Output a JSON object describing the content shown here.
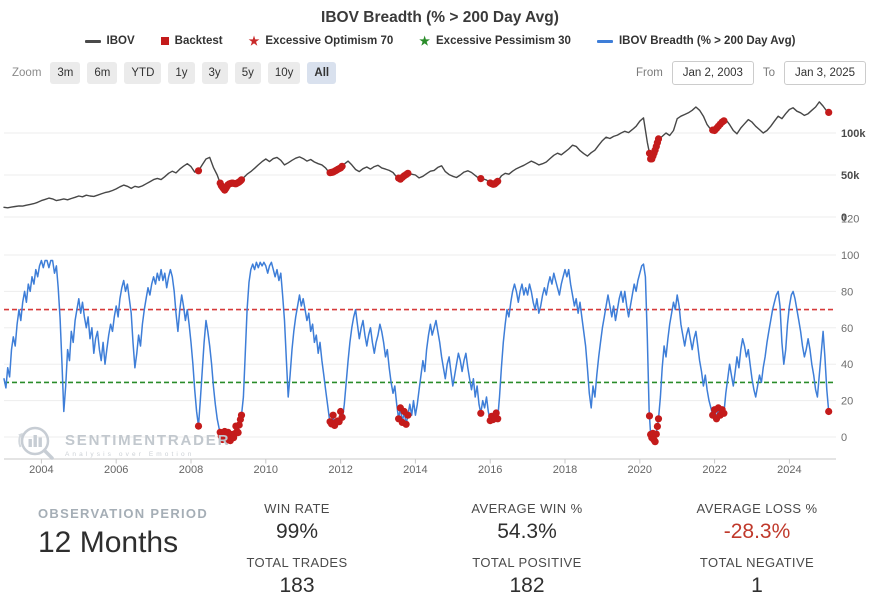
{
  "title": "IBOV Breadth (% > 200 Day Avg)",
  "legend": {
    "items": [
      {
        "label": "IBOV",
        "symbol": "line",
        "color": "#4a4a4a",
        "glyph": ""
      },
      {
        "label": "Backtest",
        "symbol": "square",
        "color": "#c41b1b",
        "glyph": ""
      },
      {
        "label": "Excessive Optimism 70",
        "symbol": "star",
        "color": "#c92a2a",
        "glyph": "★"
      },
      {
        "label": "Excessive Pessimism 30",
        "symbol": "star",
        "color": "#2a8c2a",
        "glyph": "★"
      },
      {
        "label": "IBOV Breadth (% > 200 Day Avg)",
        "symbol": "line",
        "color": "#3e7ed8",
        "glyph": ""
      }
    ]
  },
  "controls": {
    "zoom_label": "Zoom",
    "buttons": [
      "3m",
      "6m",
      "YTD",
      "1y",
      "3y",
      "5y",
      "10y",
      "All"
    ],
    "selected": "All",
    "from_label": "From",
    "from_value": "Jan 2, 2003",
    "to_label": "To",
    "to_value": "Jan 3, 2025"
  },
  "watermark": {
    "name": "SENTIMENTRADER",
    "tagline": "Analysis over Emotion"
  },
  "stats": {
    "observation_period_label": "OBSERVATION PERIOD",
    "observation_period_value": "12 Months",
    "metrics": [
      {
        "label": "WIN RATE",
        "value": "99%",
        "label2": "TOTAL TRADES",
        "value2": "183"
      },
      {
        "label": "AVERAGE WIN %",
        "value": "54.3%",
        "label2": "TOTAL POSITIVE",
        "value2": "182"
      },
      {
        "label": "AVERAGE LOSS %",
        "value": "-28.3%",
        "value_color": "#c0392b",
        "label2": "TOTAL NEGATIVE",
        "value2": "1"
      }
    ]
  },
  "chart_data": {
    "type": "line",
    "title": "IBOV Breadth (% > 200 Day Avg)",
    "x_range": [
      2003,
      2025.1
    ],
    "x_ticks": [
      2004,
      2006,
      2008,
      2010,
      2012,
      2014,
      2016,
      2018,
      2020,
      2022,
      2024
    ],
    "grid": true,
    "legend_position": "top",
    "signal_color": "#c41b1b",
    "panels": [
      {
        "id": "price",
        "name": "IBOV",
        "color": "#474747",
        "unit": "thousands",
        "ylim": [
          0,
          155
        ],
        "gridlines": [
          {
            "v": 100,
            "label": "100k"
          },
          {
            "v": 50,
            "label": "50k"
          },
          {
            "v": 0,
            "label": "0"
          }
        ],
        "t0": 2003.0,
        "dt": 0.1,
        "values": [
          11.5,
          11,
          11.8,
          12.5,
          13.2,
          13,
          14,
          15,
          16,
          17.5,
          19.5,
          21,
          22.5,
          21.5,
          19.5,
          20.5,
          21.5,
          20.5,
          22,
          23.5,
          25,
          24,
          26,
          25,
          24.5,
          26,
          27.5,
          29,
          30,
          31.5,
          33.5,
          36,
          38,
          36.5,
          34,
          36.5,
          35.5,
          37,
          39.5,
          42,
          44.5,
          46,
          44.5,
          48,
          52,
          54.5,
          52.5,
          57,
          60.5,
          63.5,
          60,
          53.5,
          55,
          62,
          69,
          71,
          59,
          50,
          38,
          32,
          39,
          40.5,
          39.5,
          42,
          46.5,
          51,
          54,
          58,
          62,
          66,
          69,
          66,
          69.5,
          71,
          67.5,
          62,
          64.5,
          67.5,
          70,
          71.5,
          69.5,
          66.5,
          68.5,
          65.5,
          63.5,
          62,
          58.5,
          52.5,
          53.5,
          56,
          58.5,
          63,
          66.5,
          62,
          56.5,
          54,
          57.5,
          59.5,
          57,
          60,
          61.5,
          58.5,
          57,
          55.5,
          53,
          47.5,
          45,
          49,
          52,
          51,
          50,
          46.5,
          48.5,
          51.5,
          54.5,
          55.5,
          59,
          61,
          54,
          50.5,
          48.5,
          47,
          50,
          53.5,
          55,
          53,
          49.5,
          46,
          45.5,
          44,
          40.5,
          38.5,
          42.5,
          49,
          52,
          51,
          54.5,
          57.5,
          59.5,
          61.5,
          64,
          66.5,
          64.5,
          62,
          63.5,
          65.5,
          69.5,
          73.5,
          76,
          74,
          77.5,
          81,
          85.5,
          84,
          79,
          75.5,
          72.5,
          76.5,
          79.5,
          85.5,
          91,
          95,
          93.5,
          96,
          97.5,
          100,
          102,
          100.5,
          104,
          108,
          114,
          118,
          89,
          67,
          78,
          93,
          96,
          100,
          97,
          103,
          117,
          120,
          122,
          124,
          127,
          131,
          127,
          120,
          110,
          104,
          103,
          108,
          113,
          116,
          110,
          103,
          99,
          106,
          111,
          116,
          113,
          108,
          104,
          100,
          103,
          108,
          114,
          120,
          117,
          123,
          128,
          130,
          126,
          124,
          121,
          123,
          127,
          131,
          137,
          132,
          126,
          123
        ]
      },
      {
        "id": "breadth",
        "name": "IBOV Breadth (% > 200 Day Avg)",
        "color": "#3e7ed8",
        "unit": "%",
        "ylim": [
          -8,
          120
        ],
        "gridlines": [
          {
            "v": 120,
            "label": "120",
            "line": false
          },
          {
            "v": 100,
            "label": "100"
          },
          {
            "v": 80,
            "label": "80"
          },
          {
            "v": 60,
            "label": "60"
          },
          {
            "v": 40,
            "label": "40"
          },
          {
            "v": 20,
            "label": "20"
          },
          {
            "v": 0,
            "label": "0"
          }
        ],
        "thresholds": [
          {
            "label": "Excessive Optimism 70",
            "v": 70,
            "color": "#d63a3a"
          },
          {
            "label": "Excessive Pessimism 30",
            "v": 30,
            "color": "#2a8c2a"
          }
        ],
        "t0": 2003.0,
        "dt": 0.05,
        "values": [
          32,
          27,
          38,
          33,
          48,
          55,
          50,
          62,
          70,
          64,
          74,
          80,
          74,
          84,
          80,
          88,
          84,
          92,
          88,
          94,
          97,
          93,
          97,
          97,
          93,
          97,
          97,
          90,
          94,
          82,
          65,
          40,
          14,
          28,
          48,
          42,
          58,
          52,
          64,
          70,
          76,
          68,
          74,
          66,
          60,
          66,
          54,
          60,
          46,
          54,
          58,
          48,
          42,
          52,
          40,
          48,
          56,
          62,
          58,
          66,
          72,
          66,
          76,
          82,
          86,
          80,
          84,
          76,
          68,
          52,
          38,
          46,
          56,
          50,
          62,
          70,
          76,
          82,
          78,
          84,
          88,
          84,
          90,
          86,
          92,
          86,
          90,
          82,
          88,
          92,
          88,
          80,
          68,
          58,
          70,
          78,
          72,
          64,
          70,
          62,
          52,
          40,
          26,
          14,
          6,
          20,
          36,
          52,
          64,
          58,
          50,
          40,
          28,
          18,
          10,
          5,
          1,
          -2,
          3,
          -3,
          4,
          -2,
          2,
          -1,
          6,
          1,
          8,
          12,
          22,
          45,
          70,
          85,
          92,
          95,
          92,
          96,
          93,
          96,
          94,
          96,
          94,
          90,
          94,
          96,
          92,
          88,
          92,
          86,
          90,
          78,
          64,
          42,
          22,
          34,
          48,
          58,
          66,
          72,
          78,
          72,
          76,
          70,
          64,
          68,
          58,
          62,
          52,
          56,
          46,
          52,
          42,
          34,
          26,
          18,
          10,
          6,
          12,
          5,
          10,
          7,
          14,
          10,
          18,
          30,
          42,
          52,
          60,
          66,
          70,
          62,
          54,
          60,
          64,
          56,
          50,
          56,
          60,
          52,
          46,
          52,
          56,
          62,
          58,
          52,
          44,
          48,
          38,
          30,
          24,
          28,
          18,
          10,
          16,
          8,
          14,
          7,
          12,
          18,
          12,
          20,
          12,
          18,
          26,
          34,
          42,
          36,
          48,
          56,
          62,
          56,
          60,
          64,
          58,
          52,
          44,
          38,
          32,
          40,
          44,
          36,
          28,
          34,
          40,
          46,
          42,
          36,
          42,
          46,
          38,
          32,
          26,
          32,
          22,
          28,
          18,
          13,
          20,
          16,
          22,
          14,
          9,
          12,
          8,
          14,
          10,
          22,
          38,
          52,
          62,
          70,
          66,
          74,
          80,
          84,
          80,
          74,
          80,
          84,
          78,
          82,
          78,
          84,
          80,
          74,
          70,
          76,
          68,
          72,
          78,
          82,
          78,
          84,
          88,
          84,
          90,
          86,
          82,
          78,
          84,
          88,
          92,
          88,
          92,
          84,
          78,
          72,
          76,
          68,
          74,
          66,
          58,
          50,
          38,
          24,
          16,
          28,
          22,
          34,
          44,
          52,
          60,
          66,
          72,
          78,
          72,
          66,
          72,
          64,
          70,
          76,
          80,
          74,
          80,
          72,
          66,
          72,
          78,
          84,
          80,
          86,
          90,
          94,
          95,
          88,
          55,
          15,
          -2,
          2,
          -4,
          3,
          10,
          22,
          38,
          50,
          44,
          54,
          62,
          68,
          74,
          70,
          78,
          72,
          62,
          56,
          50,
          56,
          60,
          54,
          48,
          54,
          58,
          50,
          42,
          36,
          28,
          34,
          26,
          20,
          16,
          12,
          15,
          10,
          16,
          12,
          15,
          13,
          24,
          32,
          40,
          34,
          28,
          36,
          44,
          38,
          48,
          54,
          50,
          44,
          48,
          40,
          32,
          26,
          22,
          28,
          34,
          30,
          38,
          44,
          52,
          58,
          64,
          70,
          74,
          78,
          80,
          72,
          52,
          40,
          48,
          62,
          72,
          78,
          80,
          76,
          70,
          64,
          58,
          50,
          44,
          48,
          54,
          48,
          40,
          34,
          26,
          22,
          34,
          46,
          58,
          44,
          26,
          14
        ]
      }
    ],
    "backtest_signal_times": [
      2008.2,
      2008.78,
      2008.81,
      2008.84,
      2008.87,
      2008.9,
      2008.93,
      2008.96,
      2008.99,
      2009.02,
      2009.05,
      2009.08,
      2009.11,
      2009.14,
      2009.17,
      2009.2,
      2009.23,
      2009.26,
      2009.29,
      2009.32,
      2009.35,
      2011.72,
      2011.76,
      2011.8,
      2011.84,
      2011.88,
      2011.92,
      2011.96,
      2012.0,
      2012.04,
      2013.55,
      2013.6,
      2013.65,
      2013.7,
      2013.75,
      2013.8,
      2015.75,
      2016.0,
      2016.04,
      2016.08,
      2016.12,
      2016.16,
      2016.2,
      2020.26,
      2020.29,
      2020.32,
      2020.35,
      2020.38,
      2020.41,
      2020.44,
      2020.47,
      2020.5,
      2021.95,
      2022.0,
      2022.05,
      2022.1,
      2022.15,
      2022.2,
      2022.25,
      2025.05
    ]
  }
}
